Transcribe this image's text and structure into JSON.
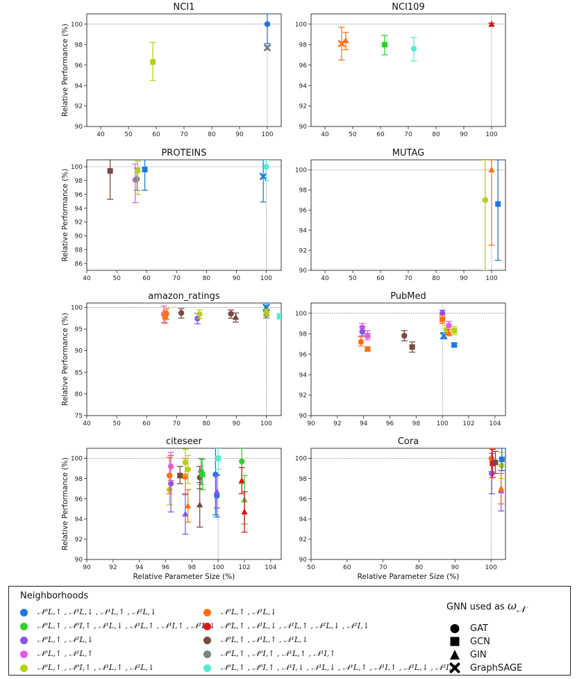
{
  "figure": {
    "ylabel": "Relative Performance (%)",
    "xlabel": "Relative Parameter Size (%)"
  },
  "colors": {
    "c1": "#1f77e0",
    "c2": "#ff7010",
    "c3": "#2fd12f",
    "c4": "#dd1515",
    "c5": "#8855ee",
    "c6": "#7b4a42",
    "c7": "#e45ce6",
    "c8": "#758485",
    "c9": "#b8d017",
    "c10": "#53ecd1"
  },
  "legend": {
    "neighborhoods_title": "Neighborhoods",
    "gnn_title": "GNN used as",
    "gnn_symbol": "ω",
    "gnn_subscript": "𝒩",
    "neighborhoods": [
      {
        "key": "c1",
        "label": "𝒩⁰L,↑ , 𝒩¹L,↓ , 𝒩¹L,↑ , 𝒩²L,↓"
      },
      {
        "key": "c2",
        "label": "𝒩⁰L,↑ , 𝒩¹L,↓"
      },
      {
        "key": "c3",
        "label": "𝒩⁰L,↑ , 𝒩⁰I,↑ , 𝒩¹L,↓ , 𝒩¹L,↑ , 𝒩¹I,↑ , 𝒩²L,↓"
      },
      {
        "key": "c4",
        "label": "𝒩⁰L,↑ , 𝒩¹L,↓ , 𝒩¹L,↑ , 𝒩²L,↓ , 𝒩²I,↓"
      },
      {
        "key": "c5",
        "label": "𝒩⁰L,↑ , 𝒩²L,↓"
      },
      {
        "key": "c6",
        "label": "𝒩⁰L,↑ , 𝒩¹L,↑ , 𝒩¹L,↓"
      },
      {
        "key": "c7",
        "label": "𝒩⁰L,↑ , 𝒩¹L,↑"
      },
      {
        "key": "c8",
        "label": "𝒩⁰L,↑ , 𝒩⁰I,↑ , 𝒩¹L,↑ , 𝒩¹I,↑"
      },
      {
        "key": "c9",
        "label": "𝒩⁰L,↑ , 𝒩⁰I,↑ , 𝒩¹L,↑ , 𝒩²L,↓"
      },
      {
        "key": "c10",
        "label": "𝒩⁰L,↑ , 𝒩⁰I,↑ , 𝒩¹I,↓ , 𝒩¹L,↓ , 𝒩¹L,↑ , 𝒩¹I,↑ , 𝒩²L,↓ , 𝒩²I,↓"
      }
    ],
    "gnns": [
      {
        "marker": "circle",
        "label": "GAT"
      },
      {
        "marker": "square",
        "label": "GCN"
      },
      {
        "marker": "triangle",
        "label": "GIN"
      },
      {
        "marker": "x",
        "label": "GraphSAGE"
      }
    ]
  },
  "chart_data": [
    {
      "type": "scatter",
      "title": "NCI1",
      "xlim": [
        35,
        105
      ],
      "xticks": [
        40,
        50,
        60,
        70,
        80,
        90,
        100
      ],
      "ylim": [
        90,
        101
      ],
      "yticks": [
        90,
        92,
        94,
        96,
        98,
        100
      ],
      "ref_x": 100,
      "ref_y": 100,
      "show_xlabel": false,
      "points": [
        {
          "c": "c9",
          "m": "square",
          "x": 58.8,
          "y": 96.3,
          "lo": 94.5,
          "hi": 98.2
        },
        {
          "c": "c8",
          "m": "x",
          "x": 100,
          "y": 97.7,
          "lo": 97.5,
          "hi": 97.9
        },
        {
          "c": "c1",
          "m": "circle",
          "x": 100,
          "y": 100,
          "lo": 98.1,
          "hi": 101
        }
      ]
    },
    {
      "type": "scatter",
      "title": "NCI109",
      "xlim": [
        35,
        105
      ],
      "xticks": [
        40,
        50,
        60,
        70,
        80,
        90,
        100
      ],
      "ylim": [
        90,
        101
      ],
      "yticks": [
        90,
        92,
        94,
        96,
        98,
        100
      ],
      "ref_x": 100,
      "ref_y": 100,
      "show_xlabel": false,
      "points": [
        {
          "c": "c2",
          "m": "x",
          "x": 46.0,
          "y": 98.1,
          "lo": 96.5,
          "hi": 99.7
        },
        {
          "c": "c2",
          "m": "triangle",
          "x": 47.5,
          "y": 98.4,
          "lo": 97.5,
          "hi": 99.2
        },
        {
          "c": "c3",
          "m": "square",
          "x": 61.5,
          "y": 98.0,
          "lo": 97.0,
          "hi": 98.9
        },
        {
          "c": "c10",
          "m": "circle",
          "x": 72.0,
          "y": 97.6,
          "lo": 96.4,
          "hi": 98.7
        },
        {
          "c": "c4",
          "m": "triangle",
          "x": 100,
          "y": 100.0,
          "lo": 99.8,
          "hi": 100.1
        }
      ]
    },
    {
      "type": "scatter",
      "title": "PROTEINS",
      "xlim": [
        40,
        105
      ],
      "xticks": [
        40,
        50,
        60,
        70,
        80,
        90,
        100
      ],
      "ylim": [
        85,
        101
      ],
      "yticks": [
        86,
        88,
        90,
        92,
        94,
        96,
        98,
        100
      ],
      "ref_x": 100,
      "ref_y": 100,
      "show_xlabel": false,
      "points": [
        {
          "c": "c6",
          "m": "square",
          "x": 47.8,
          "y": 99.4,
          "lo": 95.3,
          "hi": 101
        },
        {
          "c": "c7",
          "m": "circle",
          "x": 56.2,
          "y": 98.1,
          "lo": 94.8,
          "hi": 100.4
        },
        {
          "c": "c8",
          "m": "circle",
          "x": 56.8,
          "y": 98.2,
          "lo": 96.6,
          "hi": 99.8
        },
        {
          "c": "c9",
          "m": "circle",
          "x": 57.0,
          "y": 99.4,
          "lo": 96.0,
          "hi": 100.8
        },
        {
          "c": "c1",
          "m": "square",
          "x": 59.4,
          "y": 99.6,
          "lo": 96.6,
          "hi": 101
        },
        {
          "c": "c1",
          "m": "x",
          "x": 99.0,
          "y": 98.6,
          "lo": 94.9,
          "hi": 101
        },
        {
          "c": "c10",
          "m": "circle",
          "x": 100.0,
          "y": 100.0,
          "lo": 98.0,
          "hi": 101
        }
      ]
    },
    {
      "type": "scatter",
      "title": "MUTAG",
      "xlim": [
        35,
        105
      ],
      "xticks": [
        40,
        50,
        60,
        70,
        80,
        90,
        100
      ],
      "ylim": [
        90,
        101
      ],
      "yticks": [
        90,
        92,
        94,
        96,
        98,
        100
      ],
      "ref_x": 100,
      "ref_y": 100,
      "show_xlabel": false,
      "points": [
        {
          "c": "c9",
          "m": "circle",
          "x": 97.7,
          "y": 97.0,
          "lo": 90.0,
          "hi": 101
        },
        {
          "c": "c2",
          "m": "triangle",
          "x": 100.0,
          "y": 100.0,
          "lo": 92.5,
          "hi": 101
        },
        {
          "c": "c1",
          "m": "square",
          "x": 102.3,
          "y": 96.6,
          "lo": 91.0,
          "hi": 101
        }
      ]
    },
    {
      "type": "scatter",
      "title": "amazon_ratings",
      "xlim": [
        40,
        105
      ],
      "xticks": [
        40,
        50,
        60,
        70,
        80,
        90,
        100
      ],
      "ylim": [
        75,
        101
      ],
      "yticks": [
        75,
        80,
        85,
        90,
        95,
        100
      ],
      "ref_x": 100,
      "ref_y": 100,
      "show_xlabel": false,
      "points": [
        {
          "c": "c7",
          "m": "circle",
          "x": 65.8,
          "y": 98.4,
          "lo": 96.5,
          "hi": 100.3
        },
        {
          "c": "c2",
          "m": "square",
          "x": 66.2,
          "y": 97.8,
          "lo": 96.3,
          "hi": 99.2
        },
        {
          "c": "c2",
          "m": "circle",
          "x": 66.6,
          "y": 98.5,
          "lo": 97.2,
          "hi": 99.7
        },
        {
          "c": "c6",
          "m": "circle",
          "x": 71.6,
          "y": 98.7,
          "lo": 97.5,
          "hi": 99.7
        },
        {
          "c": "c5",
          "m": "circle",
          "x": 77.0,
          "y": 97.4,
          "lo": 96.2,
          "hi": 98.6
        },
        {
          "c": "c9",
          "m": "circle",
          "x": 77.7,
          "y": 98.4,
          "lo": 97.4,
          "hi": 99.4
        },
        {
          "c": "c6",
          "m": "circle",
          "x": 88.2,
          "y": 98.5,
          "lo": 97.5,
          "hi": 99.4
        },
        {
          "c": "c6",
          "m": "triangle",
          "x": 89.8,
          "y": 97.7,
          "lo": 96.6,
          "hi": 98.7
        },
        {
          "c": "c1",
          "m": "x",
          "x": 100.0,
          "y": 100.0,
          "lo": 99.0,
          "hi": 101
        },
        {
          "c": "c8",
          "m": "circle",
          "x": 100.0,
          "y": 98.3,
          "lo": 97.5,
          "hi": 99.1
        },
        {
          "c": "c9",
          "m": "circle",
          "x": 100.1,
          "y": 98.8,
          "lo": 98.0,
          "hi": 99.6
        },
        {
          "c": "c10",
          "m": "square",
          "x": 104.5,
          "y": 97.9,
          "lo": 97.3,
          "hi": 98.5
        }
      ]
    },
    {
      "type": "scatter",
      "title": "PubMed",
      "xlim": [
        90,
        104.8
      ],
      "xticks": [
        90,
        92,
        94,
        96,
        98,
        100,
        102,
        104
      ],
      "ylim": [
        90,
        101
      ],
      "yticks": [
        90,
        92,
        94,
        96,
        98,
        100
      ],
      "ref_x": 100,
      "ref_y": 100,
      "show_xlabel": false,
      "points": [
        {
          "c": "c7",
          "m": "circle",
          "x": 93.9,
          "y": 98.6,
          "lo": 98.2,
          "hi": 99.0
        },
        {
          "c": "c7",
          "m": "square",
          "x": 94.3,
          "y": 97.8,
          "lo": 97.4,
          "hi": 98.3
        },
        {
          "c": "c5",
          "m": "circle",
          "x": 93.9,
          "y": 98.2,
          "lo": 97.8,
          "hi": 98.7
        },
        {
          "c": "c2",
          "m": "circle",
          "x": 93.8,
          "y": 97.2,
          "lo": 96.8,
          "hi": 97.7
        },
        {
          "c": "c2",
          "m": "square",
          "x": 94.3,
          "y": 96.5,
          "lo": 96.3,
          "hi": 96.7
        },
        {
          "c": "c6",
          "m": "circle",
          "x": 97.1,
          "y": 97.8,
          "lo": 97.3,
          "hi": 98.3
        },
        {
          "c": "c6",
          "m": "square",
          "x": 97.7,
          "y": 96.7,
          "lo": 96.2,
          "hi": 97.2
        },
        {
          "c": "c5",
          "m": "circle",
          "x": 100.0,
          "y": 100.0,
          "lo": 99.6,
          "hi": 100.3
        },
        {
          "c": "c2",
          "m": "square",
          "x": 100.0,
          "y": 99.4,
          "lo": 99.0,
          "hi": 99.8
        },
        {
          "c": "c1",
          "m": "x",
          "x": 100.1,
          "y": 97.8,
          "lo": 97.5,
          "hi": 98.1
        },
        {
          "c": "c9",
          "m": "circle",
          "x": 100.3,
          "y": 98.4,
          "lo": 98.0,
          "hi": 98.8
        },
        {
          "c": "c7",
          "m": "circle",
          "x": 100.5,
          "y": 98.8,
          "lo": 98.4,
          "hi": 99.2
        },
        {
          "c": "c2",
          "m": "triangle",
          "x": 100.5,
          "y": 98.1,
          "lo": 97.8,
          "hi": 98.4
        },
        {
          "c": "c9",
          "m": "square",
          "x": 100.9,
          "y": 98.3,
          "lo": 97.9,
          "hi": 98.7
        },
        {
          "c": "c1",
          "m": "square",
          "x": 100.9,
          "y": 96.9,
          "lo": 96.8,
          "hi": 97.1
        }
      ]
    },
    {
      "type": "scatter",
      "title": "citeseer",
      "xlim": [
        90,
        104.8
      ],
      "xticks": [
        90,
        92,
        94,
        96,
        98,
        100,
        102,
        104
      ],
      "ylim": [
        90,
        101
      ],
      "yticks": [
        90,
        92,
        94,
        96,
        98,
        100
      ],
      "ref_x": 100,
      "ref_y": 100,
      "show_xlabel": true,
      "points": [
        {
          "c": "c9",
          "m": "circle",
          "x": 96.3,
          "y": 96.9,
          "lo": 95.4,
          "hi": 98.4
        },
        {
          "c": "c5",
          "m": "circle",
          "x": 96.4,
          "y": 97.5,
          "lo": 94.7,
          "hi": 100.3
        },
        {
          "c": "c7",
          "m": "circle",
          "x": 96.4,
          "y": 99.2,
          "lo": 97.8,
          "hi": 100.6
        },
        {
          "c": "c2",
          "m": "circle",
          "x": 96.3,
          "y": 98.3,
          "lo": 96.5,
          "hi": 100.1
        },
        {
          "c": "c6",
          "m": "square",
          "x": 97.1,
          "y": 98.3,
          "lo": 97.5,
          "hi": 99.2
        },
        {
          "c": "c2",
          "m": "square",
          "x": 97.5,
          "y": 98.2,
          "lo": 96.4,
          "hi": 100.0
        },
        {
          "c": "c9",
          "m": "circle",
          "x": 97.5,
          "y": 99.6,
          "lo": 98.3,
          "hi": 100.9
        },
        {
          "c": "c5",
          "m": "triangle",
          "x": 97.5,
          "y": 94.5,
          "lo": 92.5,
          "hi": 96.5
        },
        {
          "c": "c2",
          "m": "triangle",
          "x": 97.7,
          "y": 95.3,
          "lo": 93.7,
          "hi": 96.9
        },
        {
          "c": "c9",
          "m": "circle",
          "x": 97.7,
          "y": 98.9,
          "lo": 97.5,
          "hi": 100.3
        },
        {
          "c": "c6",
          "m": "triangle",
          "x": 98.6,
          "y": 95.4,
          "lo": 93.2,
          "hi": 97.6
        },
        {
          "c": "c6",
          "m": "circle",
          "x": 98.6,
          "y": 98.1,
          "lo": 97.0,
          "hi": 99.2
        },
        {
          "c": "c8",
          "m": "circle",
          "x": 98.7,
          "y": 98.7,
          "lo": 97.4,
          "hi": 100.0
        },
        {
          "c": "c3",
          "m": "square",
          "x": 98.8,
          "y": 98.4,
          "lo": 96.9,
          "hi": 99.9
        },
        {
          "c": "c1",
          "m": "circle",
          "x": 99.8,
          "y": 98.4,
          "lo": 94.4,
          "hi": 101
        },
        {
          "c": "c1",
          "m": "circle",
          "x": 99.9,
          "y": 96.3,
          "lo": 94.2,
          "hi": 98.4
        },
        {
          "c": "c5",
          "m": "triangle",
          "x": 99.9,
          "y": 96.7,
          "lo": 95.1,
          "hi": 98.3
        },
        {
          "c": "c10",
          "m": "square",
          "x": 100.0,
          "y": 100.0,
          "lo": 98.9,
          "hi": 101
        },
        {
          "c": "c3",
          "m": "circle",
          "x": 101.8,
          "y": 99.7,
          "lo": 97.5,
          "hi": 101
        },
        {
          "c": "c4",
          "m": "triangle",
          "x": 101.8,
          "y": 97.8,
          "lo": 96.5,
          "hi": 99.1
        },
        {
          "c": "c3",
          "m": "triangle",
          "x": 102.0,
          "y": 95.9,
          "lo": 93.5,
          "hi": 98.3
        },
        {
          "c": "c4",
          "m": "triangle",
          "x": 102.0,
          "y": 94.7,
          "lo": 92.7,
          "hi": 96.7
        }
      ]
    },
    {
      "type": "scatter",
      "title": "Cora",
      "xlim": [
        50,
        104
      ],
      "xticks": [
        50,
        60,
        70,
        80,
        90,
        100
      ],
      "ylim": [
        90,
        101
      ],
      "yticks": [
        90,
        92,
        94,
        96,
        98,
        100
      ],
      "ref_x": 100,
      "ref_y": 100,
      "show_xlabel": true,
      "points": [
        {
          "c": "c2",
          "m": "circle",
          "x": 100.1,
          "y": 100.0,
          "lo": 98.7,
          "hi": 101
        },
        {
          "c": "c5",
          "m": "circle",
          "x": 100.2,
          "y": 98.5,
          "lo": 96.5,
          "hi": 100.5
        },
        {
          "c": "c4",
          "m": "square",
          "x": 100.4,
          "y": 99.5,
          "lo": 98.1,
          "hi": 100.9
        },
        {
          "c": "c6",
          "m": "square",
          "x": 101.2,
          "y": 99.6,
          "lo": 98.5,
          "hi": 100.7
        },
        {
          "c": "c5",
          "m": "triangle",
          "x": 102.8,
          "y": 96.8,
          "lo": 94.8,
          "hi": 98.8
        },
        {
          "c": "c2",
          "m": "triangle",
          "x": 102.8,
          "y": 97.0,
          "lo": 95.5,
          "hi": 98.5
        },
        {
          "c": "c9",
          "m": "circle",
          "x": 102.9,
          "y": 99.3,
          "lo": 98.0,
          "hi": 100.6
        },
        {
          "c": "c1",
          "m": "square",
          "x": 103.0,
          "y": 99.9,
          "lo": 98.8,
          "hi": 101
        }
      ]
    }
  ]
}
